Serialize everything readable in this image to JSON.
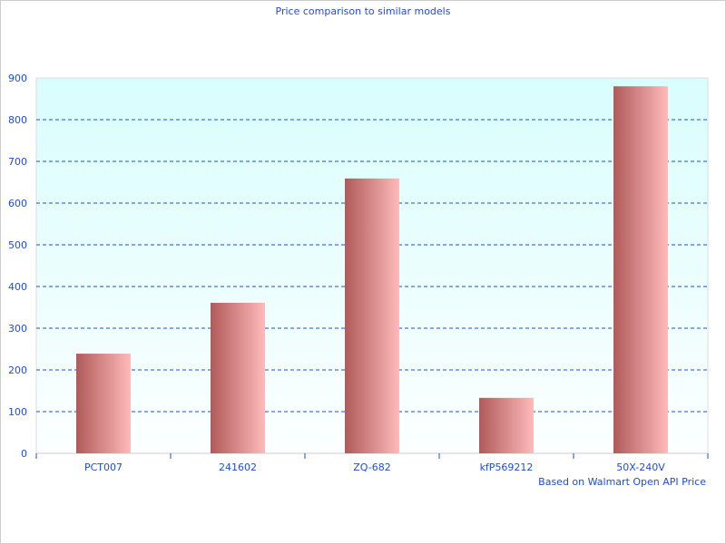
{
  "chart_data": {
    "type": "bar",
    "title": "Price comparison to similar models",
    "subtitle": "Based on Walmart Open API Price",
    "categories": [
      "PCT007",
      "241602",
      "ZQ-682",
      "kfP569212",
      "50X-240V"
    ],
    "values": [
      239,
      361,
      659,
      133,
      880
    ],
    "ylim": [
      0,
      900
    ],
    "yticks": [
      0,
      100,
      200,
      300,
      400,
      500,
      600,
      700,
      800,
      900
    ],
    "grid": true,
    "colors": {
      "bar_dark": "#b05a5a",
      "bar_light": "#ffbaba",
      "text": "#1f4fcf",
      "grid": "#1f4fcf",
      "bg_top": "#d9fdfd",
      "bg_bottom": "#fcffff"
    }
  }
}
